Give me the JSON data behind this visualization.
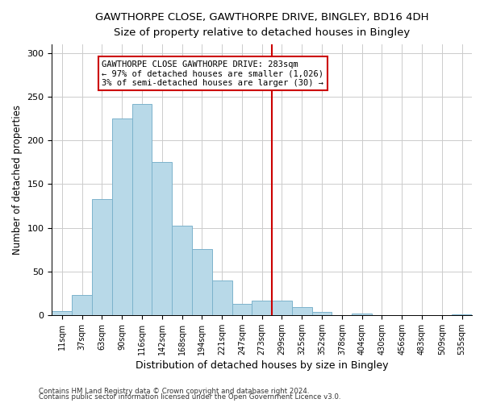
{
  "title": "GAWTHORPE CLOSE, GAWTHORPE DRIVE, BINGLEY, BD16 4DH",
  "subtitle": "Size of property relative to detached houses in Bingley",
  "xlabel": "Distribution of detached houses by size in Bingley",
  "ylabel": "Number of detached properties",
  "bar_color": "#b8d9e8",
  "bar_edge_color": "#7db3cc",
  "categories": [
    "11sqm",
    "37sqm",
    "63sqm",
    "90sqm",
    "116sqm",
    "142sqm",
    "168sqm",
    "194sqm",
    "221sqm",
    "247sqm",
    "273sqm",
    "299sqm",
    "325sqm",
    "352sqm",
    "378sqm",
    "404sqm",
    "430sqm",
    "456sqm",
    "483sqm",
    "509sqm",
    "535sqm"
  ],
  "values": [
    5,
    23,
    133,
    225,
    242,
    175,
    102,
    76,
    40,
    13,
    17,
    17,
    9,
    4,
    0,
    2,
    0,
    0,
    0,
    0,
    1
  ],
  "vline_x": 10.5,
  "vline_color": "#cc0000",
  "annotation_title": "GAWTHORPE CLOSE GAWTHORPE DRIVE: 283sqm",
  "annotation_line1": "← 97% of detached houses are smaller (1,026)",
  "annotation_line2": "3% of semi-detached houses are larger (30) →",
  "footer1": "Contains HM Land Registry data © Crown copyright and database right 2024.",
  "footer2": "Contains public sector information licensed under the Open Government Licence v3.0.",
  "ylim": [
    0,
    310
  ],
  "background_color": "#ffffff",
  "grid_color": "#cccccc",
  "yticks": [
    0,
    50,
    100,
    150,
    200,
    250,
    300
  ]
}
